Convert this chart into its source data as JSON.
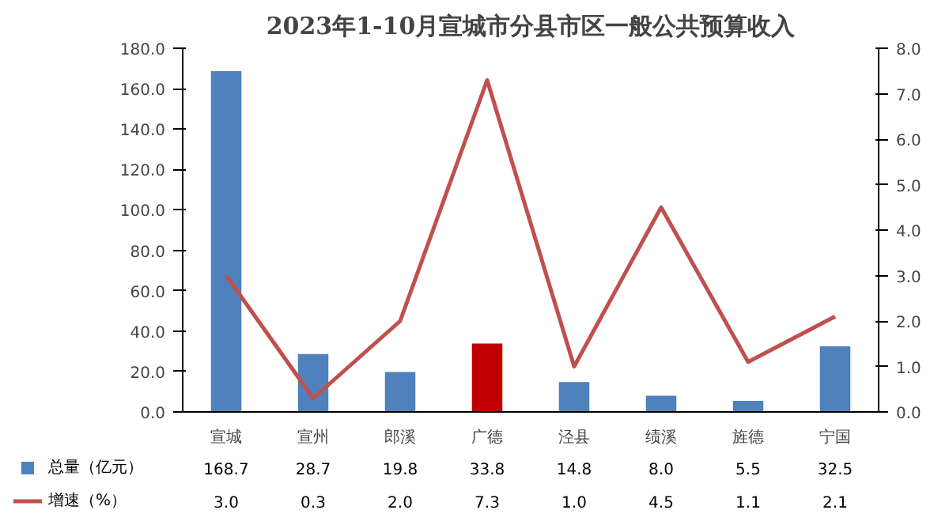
{
  "chart_data": {
    "type": "bar",
    "title": "2023年1-10月宣城市分县市区一般公共预算收入",
    "categories": [
      "宣城",
      "宣州",
      "郎溪",
      "广德",
      "泾县",
      "绩溪",
      "旌德",
      "宁国"
    ],
    "series": [
      {
        "name": "总量（亿元）",
        "color": "#4f81bd",
        "colors": [
          "#4f81bd",
          "#4f81bd",
          "#4f81bd",
          "#c00000",
          "#4f81bd",
          "#4f81bd",
          "#4f81bd",
          "#4f81bd"
        ],
        "values": [
          168.7,
          28.7,
          19.8,
          33.8,
          14.8,
          8.0,
          5.5,
          32.5
        ],
        "value_labels": [
          "168.7",
          "28.7",
          "19.8",
          "33.8",
          "14.8",
          "8.0",
          "5.5",
          "32.5"
        ]
      },
      {
        "name": "增速（%）",
        "type": "line",
        "axis": "y2",
        "color": "#c0504d",
        "values": [
          3.0,
          0.3,
          2.0,
          7.3,
          1.0,
          4.5,
          1.1,
          2.1
        ],
        "value_labels": [
          "3.0",
          "0.3",
          "2.0",
          "7.3",
          "1.0",
          "4.5",
          "1.1",
          "2.1"
        ]
      }
    ],
    "ylim": [
      0,
      180
    ],
    "yticks": [
      {
        "value": 0,
        "label": "0.0"
      },
      {
        "value": 20,
        "label": "20.0"
      },
      {
        "value": 40,
        "label": "40.0"
      },
      {
        "value": 60,
        "label": "60.0"
      },
      {
        "value": 80,
        "label": "80.0"
      },
      {
        "value": 100,
        "label": "100.0"
      },
      {
        "value": 120,
        "label": "120.0"
      },
      {
        "value": 140,
        "label": "140.0"
      },
      {
        "value": 160,
        "label": "160.0"
      },
      {
        "value": 180,
        "label": "180.0"
      }
    ],
    "y2lim": [
      0,
      8
    ],
    "y2ticks": [
      {
        "value": 0,
        "label": "0.0"
      },
      {
        "value": 1,
        "label": "1.0"
      },
      {
        "value": 2,
        "label": "2.0"
      },
      {
        "value": 3,
        "label": "3.0"
      },
      {
        "value": 4,
        "label": "4.0"
      },
      {
        "value": 5,
        "label": "5.0"
      },
      {
        "value": 6,
        "label": "6.0"
      },
      {
        "value": 7,
        "label": "7.0"
      },
      {
        "value": 8,
        "label": "8.0"
      }
    ],
    "legend": "bottom"
  }
}
